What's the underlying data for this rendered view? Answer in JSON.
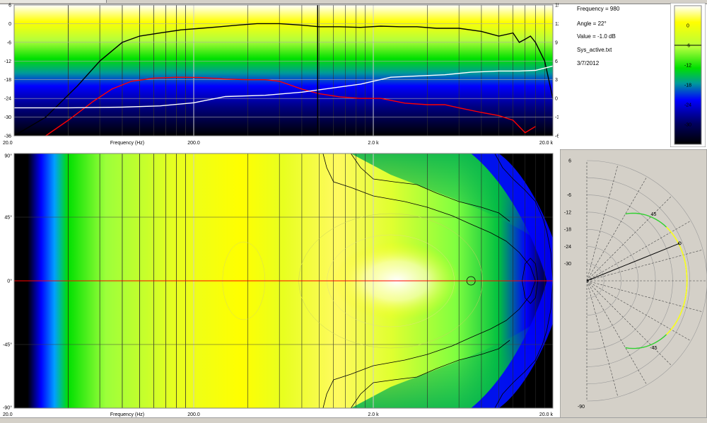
{
  "info": {
    "frequency": "Frequency = 980",
    "angle": "Angle = 22°",
    "value": "Value = -1.0 dB",
    "file": "Sys_active.txt",
    "date": "3/7/2012"
  },
  "colors": {
    "white": "#ffffff",
    "yellow": "#ffff00",
    "yellow_green": "#b4ff3c",
    "green": "#00e000",
    "teal": "#009a9a",
    "blue": "#0000ff",
    "navy": "#000060",
    "black": "#000000",
    "red_curve": "#ff0000",
    "white_curve": "#ffffff",
    "black_curve": "#000000"
  },
  "chart_data": [
    {
      "type": "line",
      "panel": "frequency response",
      "xlabel": "Frequency (Hz)",
      "x_scale": "log",
      "xlim": [
        20,
        20000
      ],
      "x_ticks": [
        "20.0",
        "200.0",
        "2.0 k",
        "20.0 k"
      ],
      "x_tick_values": [
        20,
        200,
        2000,
        20000
      ],
      "ylim_left": [
        -36,
        6
      ],
      "y_ticks_left": [
        "6",
        "0",
        "-6",
        "-12",
        "-18",
        "-24",
        "-30",
        "-36"
      ],
      "y_tick_values_left": [
        6,
        0,
        -6,
        -12,
        -18,
        -24,
        -30,
        -36
      ],
      "ylim_right": [
        -6,
        15
      ],
      "y_ticks_right": [
        "15",
        "12",
        "9",
        "6",
        "3",
        "0",
        "-3",
        "-6"
      ],
      "y_tick_values_right": [
        15,
        12,
        9,
        6,
        3,
        0,
        -3,
        -6
      ],
      "cursor_x": 980,
      "series": [
        {
          "axis": "left",
          "color": "#000000",
          "x": [
            20,
            30,
            45,
            60,
            80,
            100,
            130,
            170,
            220,
            280,
            350,
            450,
            600,
            800,
            1000,
            1300,
            1700,
            2200,
            2800,
            3500,
            4500,
            6000,
            8000,
            10000,
            12000,
            13000,
            14000,
            15000,
            16000,
            18000,
            20000
          ],
          "y": [
            -36,
            -30,
            -20,
            -12,
            -6,
            -4,
            -3,
            -2,
            -1.5,
            -1,
            -0.5,
            0,
            0,
            -0.5,
            -1,
            -1,
            -1.2,
            -0.8,
            -1,
            -1,
            -1.5,
            -1.5,
            -2.5,
            -4,
            -3,
            -6,
            -5,
            -4,
            -6,
            -12,
            -24
          ]
        },
        {
          "axis": "left",
          "color": "#ff0000",
          "x": [
            30,
            40,
            55,
            70,
            90,
            120,
            160,
            220,
            300,
            400,
            500,
            600,
            800,
            1000,
            1300,
            1700,
            2200,
            3000,
            4000,
            5000,
            6000,
            8000,
            10000,
            12000,
            14000,
            16000
          ],
          "y": [
            -36,
            -31,
            -25,
            -21,
            -18.5,
            -17.5,
            -17.2,
            -17.3,
            -17.8,
            -18,
            -18,
            -18.5,
            -21,
            -22.5,
            -23.5,
            -24,
            -24,
            -25.5,
            -26,
            -26,
            -27,
            -28.5,
            -29.5,
            -31,
            -35,
            -33
          ]
        },
        {
          "axis": "right",
          "color": "#ffffff",
          "x": [
            20,
            40,
            80,
            130,
            200,
            300,
            500,
            800,
            1200,
            1700,
            2500,
            3500,
            5000,
            7000,
            10000,
            13000,
            16000,
            20000
          ],
          "y": [
            -1.5,
            -1.5,
            -1.4,
            -1.2,
            -0.7,
            0.3,
            0.5,
            1,
            1.7,
            2.3,
            3.4,
            3.6,
            3.8,
            4.2,
            4.4,
            4.4,
            4.5,
            5.2
          ]
        }
      ]
    },
    {
      "type": "heatmap",
      "panel": "directivity map",
      "xlabel": "Frequency (Hz)",
      "x_scale": "log",
      "xlim": [
        20,
        20000
      ],
      "x_ticks": [
        "20.0",
        "200.0",
        "2.0 k",
        "20.0 k"
      ],
      "x_tick_values": [
        20,
        200,
        2000,
        20000
      ],
      "ylim": [
        -90,
        90
      ],
      "y_ticks": [
        "90°",
        "45°",
        "0°",
        "-45°",
        "-90°"
      ],
      "y_tick_values": [
        90,
        45,
        0,
        -45,
        -90
      ],
      "color_scale_db": [
        6,
        0,
        -6,
        -12,
        -18,
        -24,
        -30,
        -36
      ]
    },
    {
      "type": "line",
      "panel": "polar plot",
      "r_ticks": [
        "6",
        "-6",
        "-12",
        "-18",
        "-24",
        "-30"
      ],
      "r_tick_values": [
        6,
        -6,
        -12,
        -18,
        -24,
        -30
      ],
      "angle_labels": [
        "45",
        "-45",
        "-90"
      ],
      "angle_label_values": [
        45,
        -45,
        -90
      ],
      "cursor_angle": 22,
      "cursor_value": -1.0
    },
    {
      "type": "heatmap",
      "panel": "color scale",
      "ticks": [
        "0",
        "-6",
        "-12",
        "-18",
        "-24",
        "-30"
      ],
      "tick_values": [
        0,
        -6,
        -12,
        -18,
        -24,
        -30
      ],
      "marker_value": -6
    }
  ]
}
